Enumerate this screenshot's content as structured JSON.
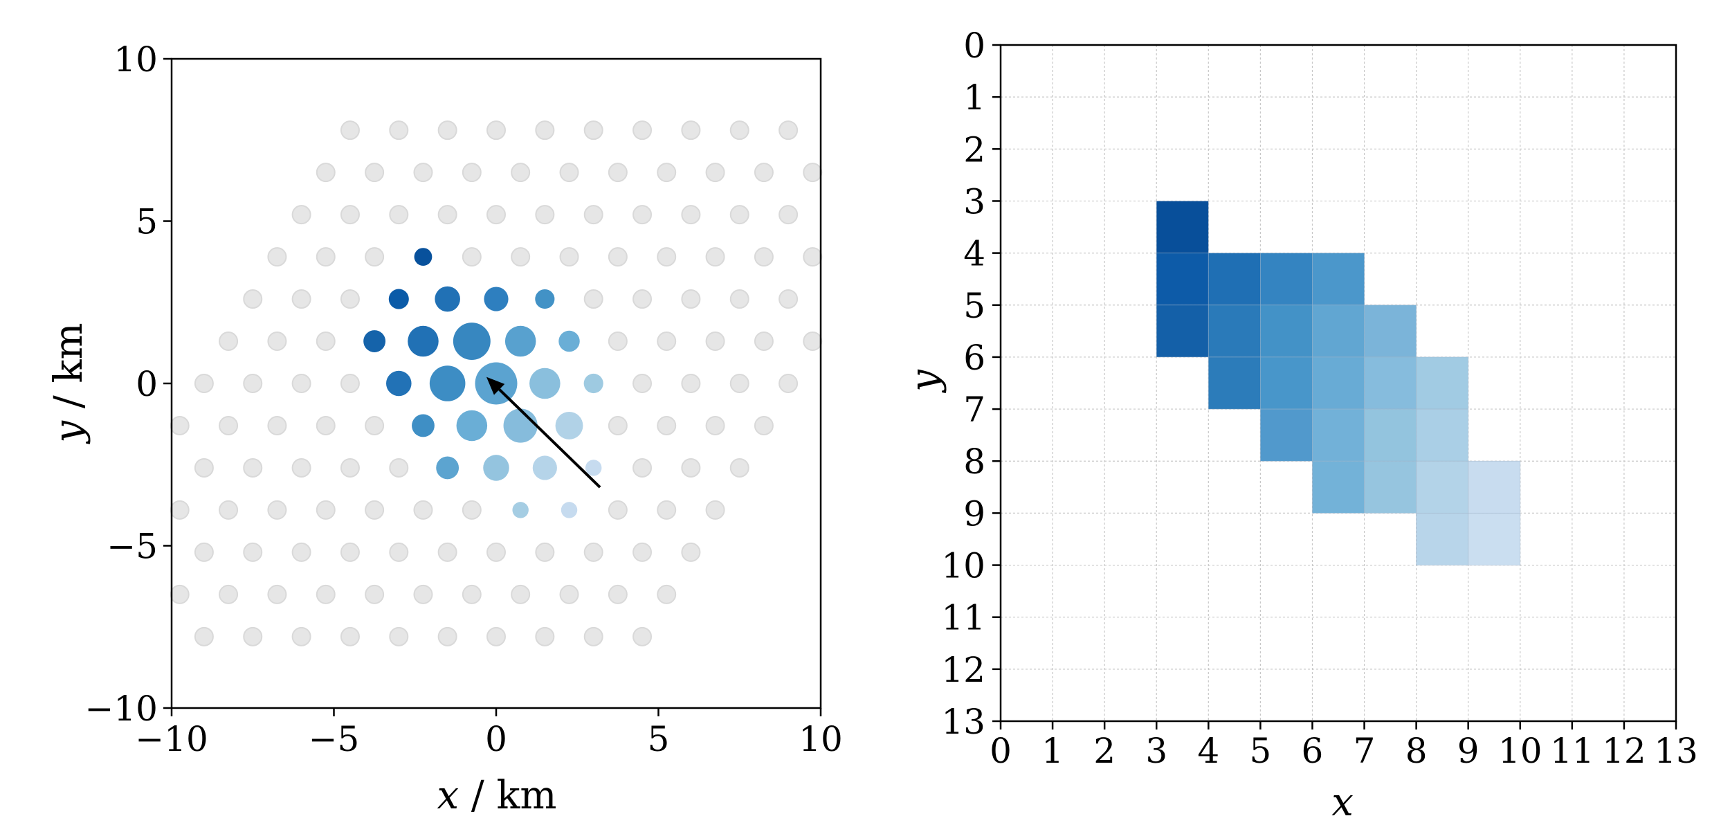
{
  "chart_data": [
    {
      "type": "scatter",
      "xlabel_var": "x",
      "xlabel_unit": " / km",
      "ylabel_var": "y",
      "ylabel_unit": " / km",
      "xlim": [
        -10,
        10
      ],
      "ylim": [
        -10,
        10
      ],
      "xticks": [
        -10,
        -5,
        0,
        5,
        10
      ],
      "yticks": [
        -10,
        -5,
        0,
        5,
        10
      ],
      "xtick_labels": [
        "−10",
        "−5",
        "0",
        "5",
        "10"
      ],
      "ytick_labels": [
        "−10",
        "−5",
        "0",
        "5",
        "10"
      ],
      "grid": false,
      "inactive_color": "#e6e6e6",
      "inactive_points": [
        [
          -4.5,
          7.8
        ],
        [
          -3.0,
          7.8
        ],
        [
          -1.5,
          7.8
        ],
        [
          0.0,
          7.8
        ],
        [
          1.5,
          7.8
        ],
        [
          3.0,
          7.8
        ],
        [
          4.5,
          7.8
        ],
        [
          6.0,
          7.8
        ],
        [
          7.5,
          7.8
        ],
        [
          9.0,
          7.8
        ],
        [
          -5.25,
          6.5
        ],
        [
          -3.75,
          6.5
        ],
        [
          -2.25,
          6.5
        ],
        [
          -0.75,
          6.5
        ],
        [
          0.75,
          6.5
        ],
        [
          2.25,
          6.5
        ],
        [
          3.75,
          6.5
        ],
        [
          5.25,
          6.5
        ],
        [
          6.75,
          6.5
        ],
        [
          8.25,
          6.5
        ],
        [
          9.75,
          6.5
        ],
        [
          -6.0,
          5.2
        ],
        [
          -4.5,
          5.2
        ],
        [
          -3.0,
          5.2
        ],
        [
          -1.5,
          5.2
        ],
        [
          0.0,
          5.2
        ],
        [
          1.5,
          5.2
        ],
        [
          3.0,
          5.2
        ],
        [
          4.5,
          5.2
        ],
        [
          6.0,
          5.2
        ],
        [
          7.5,
          5.2
        ],
        [
          9.0,
          5.2
        ],
        [
          -6.75,
          3.9
        ],
        [
          -5.25,
          3.9
        ],
        [
          -3.75,
          3.9
        ],
        [
          -0.75,
          3.9
        ],
        [
          0.75,
          3.9
        ],
        [
          2.25,
          3.9
        ],
        [
          3.75,
          3.9
        ],
        [
          5.25,
          3.9
        ],
        [
          6.75,
          3.9
        ],
        [
          8.25,
          3.9
        ],
        [
          9.75,
          3.9
        ],
        [
          -7.5,
          2.6
        ],
        [
          -6.0,
          2.6
        ],
        [
          -4.5,
          2.6
        ],
        [
          3.0,
          2.6
        ],
        [
          4.5,
          2.6
        ],
        [
          6.0,
          2.6
        ],
        [
          7.5,
          2.6
        ],
        [
          9.0,
          2.6
        ],
        [
          -8.25,
          1.3
        ],
        [
          -6.75,
          1.3
        ],
        [
          -5.25,
          1.3
        ],
        [
          3.75,
          1.3
        ],
        [
          5.25,
          1.3
        ],
        [
          6.75,
          1.3
        ],
        [
          8.25,
          1.3
        ],
        [
          9.75,
          1.3
        ],
        [
          -9.0,
          0.0
        ],
        [
          -7.5,
          0.0
        ],
        [
          -6.0,
          0.0
        ],
        [
          -4.5,
          0.0
        ],
        [
          4.5,
          0.0
        ],
        [
          6.0,
          0.0
        ],
        [
          7.5,
          0.0
        ],
        [
          9.0,
          0.0
        ],
        [
          -9.75,
          -1.3
        ],
        [
          -8.25,
          -1.3
        ],
        [
          -6.75,
          -1.3
        ],
        [
          -5.25,
          -1.3
        ],
        [
          -3.75,
          -1.3
        ],
        [
          3.75,
          -1.3
        ],
        [
          5.25,
          -1.3
        ],
        [
          6.75,
          -1.3
        ],
        [
          8.25,
          -1.3
        ],
        [
          -9.0,
          -2.6
        ],
        [
          -7.5,
          -2.6
        ],
        [
          -6.0,
          -2.6
        ],
        [
          -4.5,
          -2.6
        ],
        [
          -3.0,
          -2.6
        ],
        [
          4.5,
          -2.6
        ],
        [
          6.0,
          -2.6
        ],
        [
          7.5,
          -2.6
        ],
        [
          -9.75,
          -3.9
        ],
        [
          -8.25,
          -3.9
        ],
        [
          -6.75,
          -3.9
        ],
        [
          -5.25,
          -3.9
        ],
        [
          -3.75,
          -3.9
        ],
        [
          -2.25,
          -3.9
        ],
        [
          -0.75,
          -3.9
        ],
        [
          3.75,
          -3.9
        ],
        [
          5.25,
          -3.9
        ],
        [
          6.75,
          -3.9
        ],
        [
          -9.0,
          -5.2
        ],
        [
          -7.5,
          -5.2
        ],
        [
          -6.0,
          -5.2
        ],
        [
          -4.5,
          -5.2
        ],
        [
          -3.0,
          -5.2
        ],
        [
          -1.5,
          -5.2
        ],
        [
          0.0,
          -5.2
        ],
        [
          1.5,
          -5.2
        ],
        [
          3.0,
          -5.2
        ],
        [
          4.5,
          -5.2
        ],
        [
          6.0,
          -5.2
        ],
        [
          -9.75,
          -6.5
        ],
        [
          -8.25,
          -6.5
        ],
        [
          -6.75,
          -6.5
        ],
        [
          -5.25,
          -6.5
        ],
        [
          -3.75,
          -6.5
        ],
        [
          -2.25,
          -6.5
        ],
        [
          -0.75,
          -6.5
        ],
        [
          0.75,
          -6.5
        ],
        [
          2.25,
          -6.5
        ],
        [
          3.75,
          -6.5
        ],
        [
          5.25,
          -6.5
        ],
        [
          -9.0,
          -7.8
        ],
        [
          -7.5,
          -7.8
        ],
        [
          -6.0,
          -7.8
        ],
        [
          -4.5,
          -7.8
        ],
        [
          -3.0,
          -7.8
        ],
        [
          -1.5,
          -7.8
        ],
        [
          0.0,
          -7.8
        ],
        [
          1.5,
          -7.8
        ],
        [
          3.0,
          -7.8
        ],
        [
          4.5,
          -7.8
        ]
      ],
      "active_points": [
        {
          "x": -2.25,
          "y": 3.9,
          "size": 0.55,
          "color": "#08519c"
        },
        {
          "x": -3.0,
          "y": 2.6,
          "size": 0.62,
          "color": "#0b5ba8"
        },
        {
          "x": -1.5,
          "y": 2.6,
          "size": 0.78,
          "color": "#2171b5"
        },
        {
          "x": 0.0,
          "y": 2.6,
          "size": 0.75,
          "color": "#2e7fbf"
        },
        {
          "x": 1.5,
          "y": 2.6,
          "size": 0.6,
          "color": "#4292c6"
        },
        {
          "x": -3.75,
          "y": 1.3,
          "size": 0.68,
          "color": "#1563aa"
        },
        {
          "x": -2.25,
          "y": 1.3,
          "size": 0.95,
          "color": "#2171b5"
        },
        {
          "x": -0.75,
          "y": 1.3,
          "size": 1.15,
          "color": "#3787c0"
        },
        {
          "x": 0.75,
          "y": 1.3,
          "size": 0.95,
          "color": "#58a1cf"
        },
        {
          "x": 2.25,
          "y": 1.3,
          "size": 0.65,
          "color": "#6aaed6"
        },
        {
          "x": -3.0,
          "y": 0.0,
          "size": 0.78,
          "color": "#2272b6"
        },
        {
          "x": -1.5,
          "y": 0.0,
          "size": 1.1,
          "color": "#3d8dc4"
        },
        {
          "x": 0.0,
          "y": 0.0,
          "size": 1.3,
          "color": "#5ba3d0"
        },
        {
          "x": 1.5,
          "y": 0.0,
          "size": 0.95,
          "color": "#8abfdd"
        },
        {
          "x": 3.0,
          "y": 0.0,
          "size": 0.6,
          "color": "#9ecae1"
        },
        {
          "x": -2.25,
          "y": -1.3,
          "size": 0.7,
          "color": "#3f8fc5"
        },
        {
          "x": -0.75,
          "y": -1.3,
          "size": 0.95,
          "color": "#6aaed6"
        },
        {
          "x": 0.75,
          "y": -1.3,
          "size": 1.05,
          "color": "#86bcdc"
        },
        {
          "x": 2.25,
          "y": -1.3,
          "size": 0.85,
          "color": "#b1d2e7"
        },
        {
          "x": -1.5,
          "y": -2.6,
          "size": 0.7,
          "color": "#5ca4d0"
        },
        {
          "x": 0.0,
          "y": -2.6,
          "size": 0.8,
          "color": "#94c4df"
        },
        {
          "x": 1.5,
          "y": -2.6,
          "size": 0.75,
          "color": "#b5d4e9"
        },
        {
          "x": 3.0,
          "y": -2.6,
          "size": 0.5,
          "color": "#c6dbef"
        },
        {
          "x": 0.75,
          "y": -3.9,
          "size": 0.5,
          "color": "#a5cde3"
        },
        {
          "x": 2.25,
          "y": -3.9,
          "size": 0.5,
          "color": "#c6dbef"
        }
      ],
      "arrow": {
        "from": [
          3.2,
          -3.2
        ],
        "to": [
          -0.3,
          0.2
        ],
        "color": "#000000"
      }
    },
    {
      "type": "heatmap",
      "xlabel": "x",
      "ylabel": "y",
      "xlim": [
        0,
        13
      ],
      "ylim": [
        0,
        13
      ],
      "y_inverted": true,
      "xticks": [
        0,
        1,
        2,
        3,
        4,
        5,
        6,
        7,
        8,
        9,
        10,
        11,
        12,
        13
      ],
      "yticks": [
        0,
        1,
        2,
        3,
        4,
        5,
        6,
        7,
        8,
        9,
        10,
        11,
        12,
        13
      ],
      "grid": true,
      "cells": [
        {
          "x": 3,
          "y": 3,
          "color": "#084f9a"
        },
        {
          "x": 3,
          "y": 4,
          "color": "#0d5ba8"
        },
        {
          "x": 4,
          "y": 4,
          "color": "#1f6fb4"
        },
        {
          "x": 5,
          "y": 4,
          "color": "#3484c1"
        },
        {
          "x": 6,
          "y": 4,
          "color": "#4b97cb"
        },
        {
          "x": 3,
          "y": 5,
          "color": "#1460a8"
        },
        {
          "x": 4,
          "y": 5,
          "color": "#2a7ab9"
        },
        {
          "x": 5,
          "y": 5,
          "color": "#4392c7"
        },
        {
          "x": 6,
          "y": 5,
          "color": "#61a6d2"
        },
        {
          "x": 7,
          "y": 5,
          "color": "#7bb4d9"
        },
        {
          "x": 4,
          "y": 6,
          "color": "#2c7cba"
        },
        {
          "x": 5,
          "y": 6,
          "color": "#4896ca"
        },
        {
          "x": 6,
          "y": 6,
          "color": "#68abd5"
        },
        {
          "x": 7,
          "y": 6,
          "color": "#86bcdd"
        },
        {
          "x": 8,
          "y": 6,
          "color": "#a1cbe3"
        },
        {
          "x": 5,
          "y": 7,
          "color": "#5199cc"
        },
        {
          "x": 6,
          "y": 7,
          "color": "#72b1d8"
        },
        {
          "x": 7,
          "y": 7,
          "color": "#93c4de"
        },
        {
          "x": 8,
          "y": 7,
          "color": "#aacfe6"
        },
        {
          "x": 6,
          "y": 8,
          "color": "#73b2d8"
        },
        {
          "x": 7,
          "y": 8,
          "color": "#96c5df"
        },
        {
          "x": 8,
          "y": 8,
          "color": "#b3d3e8"
        },
        {
          "x": 9,
          "y": 8,
          "color": "#c8dcef"
        },
        {
          "x": 8,
          "y": 9,
          "color": "#b8d5ea"
        },
        {
          "x": 9,
          "y": 9,
          "color": "#cadef0"
        }
      ]
    }
  ]
}
